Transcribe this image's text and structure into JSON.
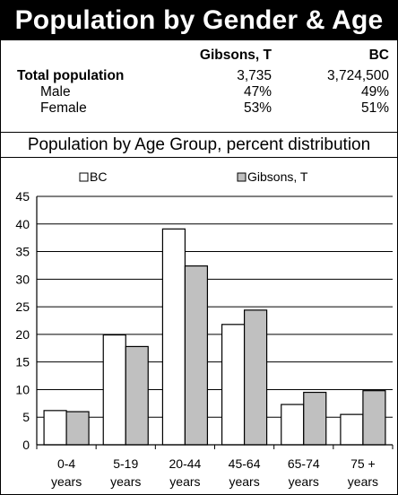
{
  "title": "Population by Gender & Age",
  "stats": {
    "headers": [
      "Gibsons, T",
      "BC"
    ],
    "rows": [
      {
        "label": "Total population",
        "values": [
          "3,735",
          "3,724,500"
        ],
        "bold": true
      },
      {
        "label": "Male",
        "values": [
          "47%",
          "49%"
        ],
        "bold": false
      },
      {
        "label": "Female",
        "values": [
          "53%",
          "51%"
        ],
        "bold": false
      }
    ]
  },
  "colors": {
    "bc": "#ffffff",
    "gibsons": "#c0c0c0"
  },
  "chart_data": {
    "type": "bar",
    "title": "Population by Age Group, percent distribution",
    "categories": [
      [
        "0-4",
        "years"
      ],
      [
        "5-19",
        "years"
      ],
      [
        "20-44",
        "years"
      ],
      [
        "45-64",
        "years"
      ],
      [
        "65-74",
        "years"
      ],
      [
        "75 +",
        "years"
      ]
    ],
    "series": [
      {
        "name": "BC",
        "values": [
          6.2,
          19.9,
          39.1,
          21.8,
          7.3,
          5.5
        ]
      },
      {
        "name": "Gibsons, T",
        "values": [
          6.0,
          17.8,
          32.4,
          24.4,
          9.5,
          9.8
        ]
      }
    ],
    "ylim": [
      0,
      45
    ],
    "yticks": [
      "0",
      "5",
      "10",
      "15",
      "20",
      "25",
      "30",
      "35",
      "40",
      "45"
    ],
    "grid": true,
    "legend_position": "top"
  }
}
